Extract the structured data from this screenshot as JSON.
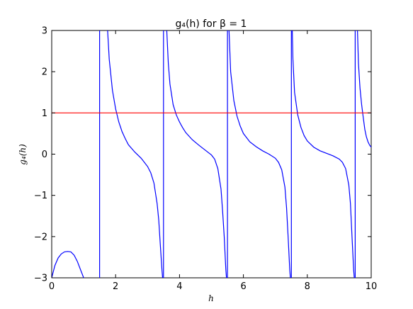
{
  "chart_data": {
    "type": "line",
    "title": "g₄(h) for β = 1",
    "xlabel": "h",
    "ylabel": "g₄(h)",
    "xlim": [
      0,
      10
    ],
    "ylim": [
      -3,
      3
    ],
    "xticks": [
      0,
      2,
      4,
      6,
      8,
      10
    ],
    "xtick_labels": [
      "0",
      "2",
      "4",
      "6",
      "8",
      "10"
    ],
    "yticks": [
      -3,
      -2,
      -1,
      0,
      1,
      2,
      3
    ],
    "ytick_labels": [
      "−3",
      "−2",
      "−1",
      "0",
      "1",
      "2",
      "3"
    ],
    "grid": false,
    "series": [
      {
        "color": "#0000ff",
        "segments": [
          [
            [
              0,
              -3.0
            ],
            [
              0.1,
              -2.7
            ],
            [
              0.2,
              -2.52
            ],
            [
              0.3,
              -2.42
            ],
            [
              0.4,
              -2.37
            ],
            [
              0.5,
              -2.36
            ],
            [
              0.6,
              -2.37
            ],
            [
              0.7,
              -2.45
            ],
            [
              0.8,
              -2.6
            ],
            [
              0.9,
              -2.8
            ],
            [
              1.0,
              -3.0
            ]
          ],
          [
            [
              1.5,
              -3.0
            ],
            [
              1.5,
              3.0
            ]
          ],
          [
            [
              1.75,
              3.0
            ],
            [
              1.8,
              2.3
            ],
            [
              1.9,
              1.55
            ],
            [
              2.0,
              1.1
            ],
            [
              2.1,
              0.78
            ],
            [
              2.2,
              0.55
            ],
            [
              2.3,
              0.38
            ],
            [
              2.4,
              0.23
            ],
            [
              2.6,
              0.05
            ],
            [
              2.8,
              -0.1
            ],
            [
              3.0,
              -0.3
            ],
            [
              3.1,
              -0.45
            ],
            [
              3.2,
              -0.7
            ],
            [
              3.3,
              -1.2
            ],
            [
              3.35,
              -1.6
            ],
            [
              3.4,
              -2.2
            ],
            [
              3.45,
              -2.8
            ],
            [
              3.47,
              -3.0
            ]
          ],
          [
            [
              3.5,
              -3.0
            ],
            [
              3.5,
              3.0
            ]
          ],
          [
            [
              3.6,
              3.0
            ],
            [
              3.65,
              2.2
            ],
            [
              3.7,
              1.7
            ],
            [
              3.8,
              1.2
            ],
            [
              3.9,
              0.95
            ],
            [
              4.0,
              0.78
            ],
            [
              4.1,
              0.64
            ],
            [
              4.2,
              0.52
            ],
            [
              4.4,
              0.35
            ],
            [
              4.6,
              0.22
            ],
            [
              4.8,
              0.1
            ],
            [
              5.0,
              -0.02
            ],
            [
              5.1,
              -0.12
            ],
            [
              5.2,
              -0.35
            ],
            [
              5.3,
              -0.85
            ],
            [
              5.35,
              -1.4
            ],
            [
              5.4,
              -2.0
            ],
            [
              5.45,
              -2.8
            ],
            [
              5.47,
              -3.0
            ]
          ],
          [
            [
              5.5,
              -3.0
            ],
            [
              5.5,
              3.0
            ]
          ],
          [
            [
              5.55,
              3.0
            ],
            [
              5.6,
              2.0
            ],
            [
              5.7,
              1.3
            ],
            [
              5.8,
              0.92
            ],
            [
              5.9,
              0.68
            ],
            [
              6.0,
              0.5
            ],
            [
              6.2,
              0.3
            ],
            [
              6.4,
              0.18
            ],
            [
              6.6,
              0.08
            ],
            [
              6.8,
              0.0
            ],
            [
              7.0,
              -0.1
            ],
            [
              7.1,
              -0.2
            ],
            [
              7.2,
              -0.38
            ],
            [
              7.3,
              -0.8
            ],
            [
              7.35,
              -1.3
            ],
            [
              7.4,
              -2.0
            ],
            [
              7.45,
              -2.8
            ],
            [
              7.47,
              -3.0
            ]
          ],
          [
            [
              7.5,
              -3.0
            ],
            [
              7.5,
              3.0
            ]
          ],
          [
            [
              7.53,
              3.0
            ],
            [
              7.55,
              2.3
            ],
            [
              7.6,
              1.5
            ],
            [
              7.7,
              0.95
            ],
            [
              7.8,
              0.65
            ],
            [
              7.9,
              0.45
            ],
            [
              8.0,
              0.32
            ],
            [
              8.2,
              0.17
            ],
            [
              8.4,
              0.08
            ],
            [
              8.6,
              0.02
            ],
            [
              8.8,
              -0.04
            ],
            [
              9.0,
              -0.12
            ],
            [
              9.1,
              -0.2
            ],
            [
              9.2,
              -0.35
            ],
            [
              9.3,
              -0.75
            ],
            [
              9.35,
              -1.2
            ],
            [
              9.4,
              -2.0
            ],
            [
              9.45,
              -2.8
            ],
            [
              9.47,
              -3.0
            ]
          ],
          [
            [
              9.5,
              -3.0
            ],
            [
              9.5,
              3.0
            ]
          ],
          [
            [
              9.57,
              3.0
            ],
            [
              9.6,
              2.2
            ],
            [
              9.65,
              1.6
            ],
            [
              9.7,
              1.2
            ],
            [
              9.75,
              0.9
            ],
            [
              9.8,
              0.6
            ],
            [
              9.85,
              0.42
            ],
            [
              9.9,
              0.3
            ],
            [
              9.95,
              0.22
            ],
            [
              10.0,
              0.17
            ]
          ]
        ]
      },
      {
        "color": "#ff0000",
        "segments": [
          [
            [
              0,
              1
            ],
            [
              10,
              1
            ]
          ]
        ]
      }
    ]
  }
}
